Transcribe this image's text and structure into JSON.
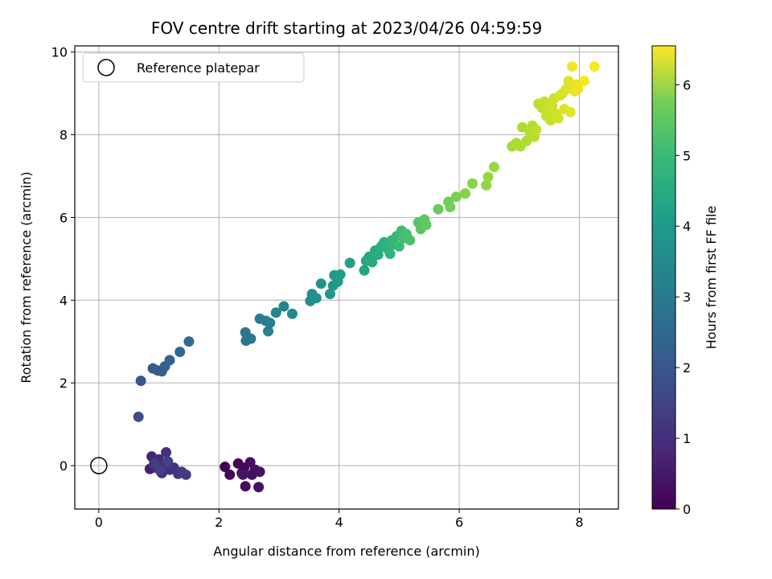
{
  "chart_data": {
    "type": "scatter",
    "title": "FOV centre drift starting at 2023/04/26 04:59:59",
    "xlabel": "Angular distance from reference (arcmin)",
    "ylabel": "Rotation from reference (arcmin)",
    "xlim": [
      -0.4,
      8.65
    ],
    "ylim": [
      -1.05,
      10.15
    ],
    "xticks": [
      "0",
      "2",
      "4",
      "6",
      "8"
    ],
    "yticks": [
      "0",
      "2",
      "4",
      "6",
      "8",
      "10"
    ],
    "grid": true,
    "legend": {
      "placement": "upper-left",
      "entries": [
        "Reference platepar"
      ]
    },
    "reference_point": {
      "x": 0,
      "y": 0
    },
    "colorbar": {
      "label": "Hours from first FF file",
      "range": [
        0,
        6.55
      ],
      "ticks": [
        "0",
        "1",
        "2",
        "3",
        "4",
        "5",
        "6"
      ],
      "colormap": "viridis"
    },
    "points": [
      {
        "x": 2.1,
        "y": -0.03,
        "h": 0.02
      },
      {
        "x": 2.18,
        "y": -0.22,
        "h": 0.05
      },
      {
        "x": 2.32,
        "y": 0.05,
        "h": 0.08
      },
      {
        "x": 2.38,
        "y": -0.18,
        "h": 0.12
      },
      {
        "x": 2.42,
        "y": -0.05,
        "h": 0.15
      },
      {
        "x": 2.44,
        "y": -0.5,
        "h": 0.18
      },
      {
        "x": 2.52,
        "y": 0.08,
        "h": 0.22
      },
      {
        "x": 2.55,
        "y": -0.22,
        "h": 0.25
      },
      {
        "x": 2.6,
        "y": -0.1,
        "h": 0.28
      },
      {
        "x": 2.66,
        "y": -0.52,
        "h": 0.3
      },
      {
        "x": 2.68,
        "y": -0.15,
        "h": 0.33
      },
      {
        "x": 2.4,
        "y": -0.22,
        "h": 0.36
      },
      {
        "x": 0.85,
        "y": -0.08,
        "h": 0.6
      },
      {
        "x": 0.88,
        "y": 0.22,
        "h": 0.65
      },
      {
        "x": 0.95,
        "y": -0.05,
        "h": 0.7
      },
      {
        "x": 1.0,
        "y": 0.15,
        "h": 0.75
      },
      {
        "x": 1.05,
        "y": -0.18,
        "h": 0.8
      },
      {
        "x": 1.08,
        "y": 0.0,
        "h": 0.85
      },
      {
        "x": 1.12,
        "y": 0.32,
        "h": 0.9
      },
      {
        "x": 1.18,
        "y": -0.1,
        "h": 0.95
      },
      {
        "x": 1.25,
        "y": -0.05,
        "h": 1.0
      },
      {
        "x": 1.32,
        "y": -0.2,
        "h": 1.05
      },
      {
        "x": 1.38,
        "y": -0.15,
        "h": 1.1
      },
      {
        "x": 1.45,
        "y": -0.22,
        "h": 1.15
      },
      {
        "x": 0.92,
        "y": 0.05,
        "h": 1.2
      },
      {
        "x": 1.02,
        "y": -0.12,
        "h": 1.25
      },
      {
        "x": 1.15,
        "y": 0.1,
        "h": 1.3
      },
      {
        "x": 0.66,
        "y": 1.18,
        "h": 1.55
      },
      {
        "x": 0.7,
        "y": 2.05,
        "h": 1.75
      },
      {
        "x": 0.9,
        "y": 2.35,
        "h": 1.85
      },
      {
        "x": 0.98,
        "y": 2.3,
        "h": 1.9
      },
      {
        "x": 1.05,
        "y": 2.28,
        "h": 1.95
      },
      {
        "x": 1.1,
        "y": 2.4,
        "h": 2.0
      },
      {
        "x": 1.18,
        "y": 2.55,
        "h": 2.1
      },
      {
        "x": 1.35,
        "y": 2.75,
        "h": 2.2
      },
      {
        "x": 1.5,
        "y": 3.0,
        "h": 2.3
      },
      {
        "x": 2.44,
        "y": 3.22,
        "h": 2.55
      },
      {
        "x": 2.45,
        "y": 3.02,
        "h": 2.6
      },
      {
        "x": 2.53,
        "y": 3.07,
        "h": 2.65
      },
      {
        "x": 2.68,
        "y": 3.55,
        "h": 2.75
      },
      {
        "x": 2.78,
        "y": 3.5,
        "h": 2.8
      },
      {
        "x": 2.85,
        "y": 3.45,
        "h": 2.85
      },
      {
        "x": 2.82,
        "y": 3.25,
        "h": 2.9
      },
      {
        "x": 2.95,
        "y": 3.7,
        "h": 2.95
      },
      {
        "x": 3.08,
        "y": 3.85,
        "h": 3.0
      },
      {
        "x": 3.22,
        "y": 3.67,
        "h": 3.05
      },
      {
        "x": 3.52,
        "y": 3.98,
        "h": 3.2
      },
      {
        "x": 3.55,
        "y": 4.15,
        "h": 3.25
      },
      {
        "x": 3.62,
        "y": 4.05,
        "h": 3.3
      },
      {
        "x": 3.7,
        "y": 4.4,
        "h": 3.35
      },
      {
        "x": 3.85,
        "y": 4.15,
        "h": 3.4
      },
      {
        "x": 3.9,
        "y": 4.35,
        "h": 3.45
      },
      {
        "x": 3.92,
        "y": 4.6,
        "h": 3.5
      },
      {
        "x": 3.98,
        "y": 4.45,
        "h": 3.55
      },
      {
        "x": 4.02,
        "y": 4.62,
        "h": 3.6
      },
      {
        "x": 4.18,
        "y": 4.9,
        "h": 3.7
      },
      {
        "x": 4.42,
        "y": 4.72,
        "h": 3.8
      },
      {
        "x": 4.45,
        "y": 4.95,
        "h": 3.85
      },
      {
        "x": 4.5,
        "y": 5.05,
        "h": 3.9
      },
      {
        "x": 4.55,
        "y": 4.92,
        "h": 3.95
      },
      {
        "x": 4.6,
        "y": 5.2,
        "h": 4.0
      },
      {
        "x": 4.65,
        "y": 5.1,
        "h": 4.05
      },
      {
        "x": 4.7,
        "y": 5.3,
        "h": 4.1
      },
      {
        "x": 4.75,
        "y": 5.4,
        "h": 4.15
      },
      {
        "x": 4.8,
        "y": 5.25,
        "h": 4.2
      },
      {
        "x": 4.85,
        "y": 5.12,
        "h": 4.25
      },
      {
        "x": 4.88,
        "y": 5.45,
        "h": 4.3
      },
      {
        "x": 4.92,
        "y": 5.35,
        "h": 4.35
      },
      {
        "x": 4.96,
        "y": 5.55,
        "h": 4.4
      },
      {
        "x": 5.0,
        "y": 5.3,
        "h": 4.45
      },
      {
        "x": 5.04,
        "y": 5.68,
        "h": 4.5
      },
      {
        "x": 5.08,
        "y": 5.5,
        "h": 4.55
      },
      {
        "x": 5.12,
        "y": 5.6,
        "h": 4.6
      },
      {
        "x": 5.18,
        "y": 5.45,
        "h": 4.65
      },
      {
        "x": 5.32,
        "y": 5.88,
        "h": 4.75
      },
      {
        "x": 5.36,
        "y": 5.72,
        "h": 4.8
      },
      {
        "x": 5.42,
        "y": 5.95,
        "h": 4.85
      },
      {
        "x": 5.45,
        "y": 5.82,
        "h": 4.9
      },
      {
        "x": 5.65,
        "y": 6.2,
        "h": 5.0
      },
      {
        "x": 5.82,
        "y": 6.38,
        "h": 5.1
      },
      {
        "x": 5.85,
        "y": 6.25,
        "h": 5.15
      },
      {
        "x": 5.95,
        "y": 6.5,
        "h": 5.2
      },
      {
        "x": 6.1,
        "y": 6.58,
        "h": 5.3
      },
      {
        "x": 6.22,
        "y": 6.82,
        "h": 5.35
      },
      {
        "x": 6.45,
        "y": 6.78,
        "h": 5.45
      },
      {
        "x": 6.48,
        "y": 6.98,
        "h": 5.5
      },
      {
        "x": 6.58,
        "y": 7.22,
        "h": 5.55
      },
      {
        "x": 6.88,
        "y": 7.72,
        "h": 5.65
      },
      {
        "x": 6.95,
        "y": 7.8,
        "h": 5.7
      },
      {
        "x": 7.02,
        "y": 7.72,
        "h": 5.72
      },
      {
        "x": 7.05,
        "y": 8.18,
        "h": 5.75
      },
      {
        "x": 7.12,
        "y": 7.85,
        "h": 5.78
      },
      {
        "x": 7.18,
        "y": 8.05,
        "h": 5.8
      },
      {
        "x": 7.22,
        "y": 8.22,
        "h": 5.82
      },
      {
        "x": 7.25,
        "y": 7.95,
        "h": 5.85
      },
      {
        "x": 7.28,
        "y": 8.12,
        "h": 5.88
      },
      {
        "x": 7.32,
        "y": 8.75,
        "h": 5.9
      },
      {
        "x": 7.38,
        "y": 8.65,
        "h": 5.92
      },
      {
        "x": 7.42,
        "y": 8.8,
        "h": 5.95
      },
      {
        "x": 7.45,
        "y": 8.45,
        "h": 5.98
      },
      {
        "x": 7.48,
        "y": 8.6,
        "h": 6.0
      },
      {
        "x": 7.52,
        "y": 8.35,
        "h": 6.02
      },
      {
        "x": 7.55,
        "y": 8.7,
        "h": 6.05
      },
      {
        "x": 7.58,
        "y": 8.88,
        "h": 6.08
      },
      {
        "x": 7.62,
        "y": 8.5,
        "h": 6.1
      },
      {
        "x": 7.65,
        "y": 8.4,
        "h": 6.12
      },
      {
        "x": 7.68,
        "y": 8.95,
        "h": 6.15
      },
      {
        "x": 7.72,
        "y": 9.0,
        "h": 6.18
      },
      {
        "x": 7.75,
        "y": 8.62,
        "h": 6.2
      },
      {
        "x": 7.78,
        "y": 9.1,
        "h": 6.22
      },
      {
        "x": 7.82,
        "y": 9.3,
        "h": 6.25
      },
      {
        "x": 7.85,
        "y": 8.55,
        "h": 6.28
      },
      {
        "x": 7.88,
        "y": 9.18,
        "h": 6.3
      },
      {
        "x": 7.92,
        "y": 9.05,
        "h": 6.33
      },
      {
        "x": 7.95,
        "y": 9.22,
        "h": 6.36
      },
      {
        "x": 7.98,
        "y": 9.12,
        "h": 6.4
      },
      {
        "x": 7.88,
        "y": 9.65,
        "h": 6.45
      },
      {
        "x": 8.08,
        "y": 9.3,
        "h": 6.48
      },
      {
        "x": 8.25,
        "y": 9.65,
        "h": 6.52
      }
    ]
  }
}
